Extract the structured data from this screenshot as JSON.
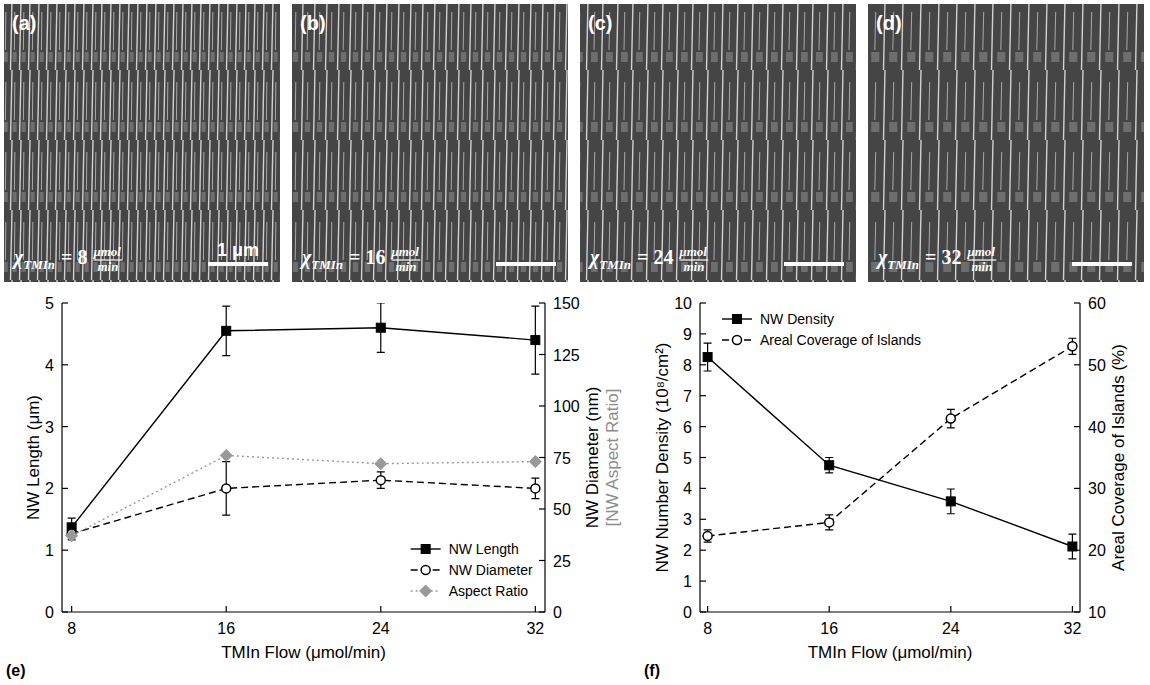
{
  "panels": [
    {
      "label": "(a)",
      "caption": {
        "symbol": "χ",
        "subscript": "TMIn",
        "relation": "= 8",
        "unit_numerator": "μmol",
        "unit_denominator": "min"
      },
      "scale_bar": "1 μm"
    },
    {
      "label": "(b)",
      "caption": {
        "symbol": "χ",
        "subscript": "TMIn",
        "relation": "= 16",
        "unit_numerator": "μmol",
        "unit_denominator": "min"
      }
    },
    {
      "label": "(c)",
      "caption": {
        "symbol": "χ",
        "subscript": "TMIn",
        "relation": "= 24",
        "unit_numerator": "μmol",
        "unit_denominator": "min"
      }
    },
    {
      "label": "(d)",
      "caption": {
        "symbol": "χ",
        "subscript": "TMIn",
        "relation": "= 32",
        "unit_numerator": "μmol",
        "unit_denominator": "min"
      }
    }
  ],
  "chart_data": [
    {
      "type": "line",
      "panel": "(e)",
      "x": [
        8,
        16,
        24,
        32
      ],
      "xlim": [
        7.5,
        32.5
      ],
      "xticks": [
        8,
        16,
        24,
        32
      ],
      "x_label": "TMIn Flow (μmol/min)",
      "y_label": "NW Length (μm)",
      "ylim": [
        0,
        5
      ],
      "yticks": [
        0,
        1,
        2,
        3,
        4,
        5
      ],
      "y2_label": [
        "NW Diameter (nm)",
        "[NW Aspect Ratio]"
      ],
      "y2lim": [
        0,
        150
      ],
      "y2ticks": [
        0,
        25,
        50,
        75,
        100,
        125,
        150
      ],
      "legend": "lower right",
      "series": [
        {
          "name": "NW Length",
          "color": "#000000",
          "marker": "square",
          "line_style": "solid",
          "values": [
            1.37,
            4.55,
            4.6,
            4.4
          ],
          "errors": [
            0.15,
            0.4,
            0.4,
            0.55
          ]
        },
        {
          "name": "NW Diameter",
          "color": "#000000",
          "marker": "open_circle",
          "line_style": "dashed",
          "axis": "y2",
          "values": [
            38,
            60,
            64,
            60
          ],
          "errors": [
            3,
            13,
            4,
            5
          ]
        },
        {
          "name": "Aspect Ratio",
          "color": "#999999",
          "marker": "diamond",
          "line_style": "dotted",
          "axis": "y2",
          "values": [
            37,
            76,
            72,
            73
          ]
        }
      ]
    },
    {
      "type": "line",
      "panel": "(f)",
      "x": [
        8,
        16,
        24,
        32
      ],
      "xlim": [
        7.5,
        32.5
      ],
      "xticks": [
        8,
        16,
        24,
        32
      ],
      "x_label": "TMIn Flow (μmol/min)",
      "y_label": "NW Number Density (10⁸/cm²)",
      "ylim": [
        0,
        10
      ],
      "yticks": [
        0,
        1,
        2,
        3,
        4,
        5,
        6,
        7,
        8,
        9,
        10
      ],
      "y2_label": [
        "Areal Coverage of Islands (%)"
      ],
      "y2lim": [
        10,
        60
      ],
      "y2ticks": [
        10,
        20,
        30,
        40,
        50,
        60
      ],
      "legend": "upper left",
      "series": [
        {
          "name": "NW Density",
          "color": "#000000",
          "marker": "square",
          "line_style": "solid",
          "values": [
            8.25,
            4.75,
            3.58,
            2.12
          ],
          "errors": [
            0.45,
            0.25,
            0.4,
            0.4
          ]
        },
        {
          "name": "Areal Coverage of Islands",
          "color": "#000000",
          "marker": "open_circle",
          "line_style": "dashed",
          "axis": "y2",
          "values": [
            22.3,
            24.5,
            41.3,
            53.0
          ],
          "errors": [
            1.0,
            1.2,
            1.5,
            1.3
          ]
        }
      ]
    }
  ]
}
